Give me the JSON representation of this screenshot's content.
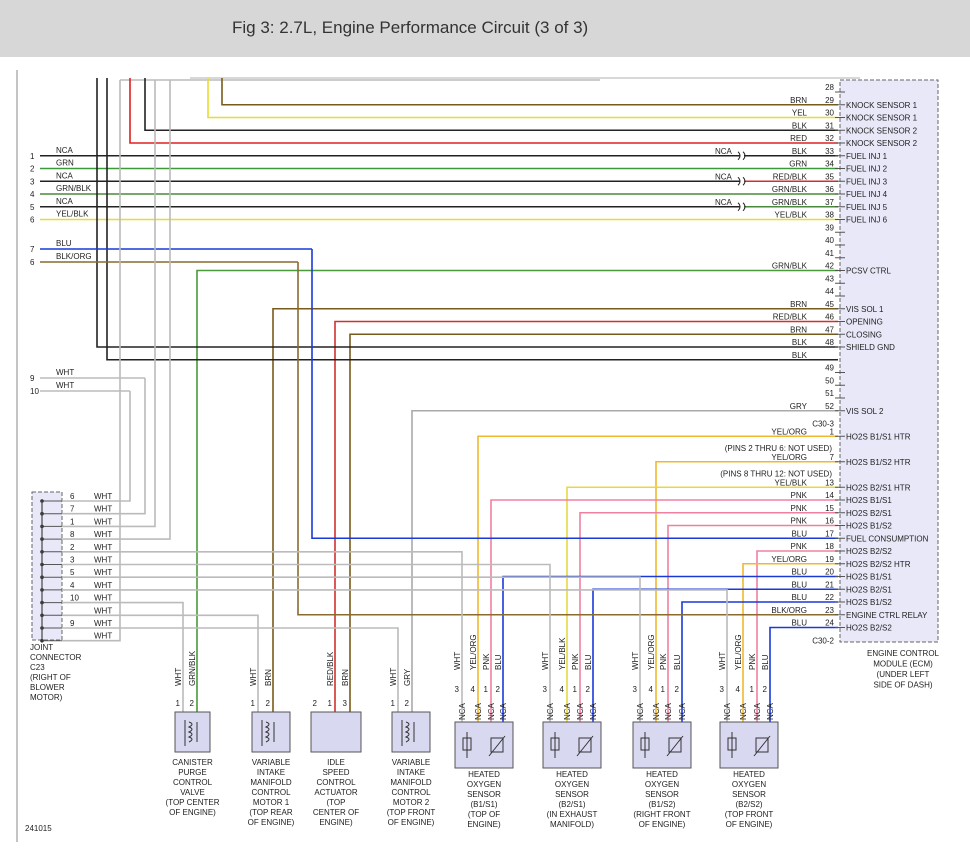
{
  "header": {
    "title": "Fig 3: 2.7L, Engine Performance Circuit (3 of 3)"
  },
  "ecm": {
    "label": [
      "ENGINE CONTROL",
      "MODULE (ECM)",
      "(UNDER LEFT",
      "SIDE OF DASH)"
    ],
    "rows": [
      {
        "pin": "28"
      },
      {
        "pin": "29",
        "wire": "BRN",
        "function": "KNOCK SENSOR 1"
      },
      {
        "pin": "30",
        "wire": "YEL",
        "function": "KNOCK SENSOR 1"
      },
      {
        "pin": "31",
        "wire": "BLK",
        "function": "KNOCK SENSOR 2"
      },
      {
        "pin": "32",
        "wire": "RED",
        "function": "KNOCK SENSOR 2"
      },
      {
        "pin": "33",
        "wire": "BLK",
        "function": "FUEL INJ 1",
        "splice": "NCA"
      },
      {
        "pin": "34",
        "wire": "GRN",
        "function": "FUEL INJ 2"
      },
      {
        "pin": "35",
        "wire": "RED/BLK",
        "function": "FUEL INJ 3",
        "splice": "NCA"
      },
      {
        "pin": "36",
        "wire": "GRN/BLK",
        "function": "FUEL INJ 4"
      },
      {
        "pin": "37",
        "wire": "GRN/BLK",
        "function": "FUEL INJ 5",
        "splice": "NCA"
      },
      {
        "pin": "38",
        "wire": "YEL/BLK",
        "function": "FUEL INJ 6"
      },
      {
        "pin": "39"
      },
      {
        "pin": "40"
      },
      {
        "pin": "41"
      },
      {
        "pin": "42",
        "wire": "GRN/BLK",
        "function": "PCSV CTRL"
      },
      {
        "pin": "43"
      },
      {
        "pin": "44"
      },
      {
        "pin": "45",
        "wire": "BRN",
        "function": "VIS SOL 1"
      },
      {
        "pin": "46",
        "wire": "RED/BLK",
        "function": "OPENING"
      },
      {
        "pin": "47",
        "wire": "BRN",
        "function": "CLOSING"
      },
      {
        "pin": "48",
        "wire": "BLK",
        "function": "SHIELD GND"
      },
      {
        "wire": "BLK"
      },
      {
        "pin": "49"
      },
      {
        "pin": "50"
      },
      {
        "pin": "51"
      },
      {
        "pin": "52",
        "wire": "GRY",
        "function": "VIS SOL 2"
      },
      {
        "connector": "C30-3"
      },
      {
        "pin": "1",
        "wire": "YEL/ORG",
        "function": "HO2S B1/S1 HTR"
      },
      {
        "note": "(PINS 2 THRU 6: NOT USED)"
      },
      {
        "pin": "7",
        "wire": "YEL/ORG",
        "function": "HO2S B1/S2 HTR"
      },
      {
        "note": "(PINS 8 THRU 12: NOT USED)"
      },
      {
        "pin": "13",
        "wire": "YEL/BLK",
        "function": "HO2S B2/S1 HTR"
      },
      {
        "pin": "14",
        "wire": "PNK",
        "function": "HO2S B1/S1"
      },
      {
        "pin": "15",
        "wire": "PNK",
        "function": "HO2S B2/S1"
      },
      {
        "pin": "16",
        "wire": "PNK",
        "function": "HO2S B1/S2"
      },
      {
        "pin": "17",
        "wire": "BLU",
        "function": "FUEL CONSUMPTION"
      },
      {
        "pin": "18",
        "wire": "PNK",
        "function": "HO2S B2/S2"
      },
      {
        "pin": "19",
        "wire": "YEL/ORG",
        "function": "HO2S B2/S2 HTR"
      },
      {
        "pin": "20",
        "wire": "BLU",
        "function": "HO2S B1/S1"
      },
      {
        "pin": "21",
        "wire": "BLU",
        "function": "HO2S B2/S1"
      },
      {
        "pin": "22",
        "wire": "BLU",
        "function": "HO2S B1/S2"
      },
      {
        "pin": "23",
        "wire": "BLK/ORG",
        "function": "ENGINE CTRL RELAY"
      },
      {
        "pin": "24",
        "wire": "BLU",
        "function": "HO2S B2/S2"
      },
      {
        "connector": "C30-2"
      }
    ]
  },
  "left_pins": [
    {
      "pin": "1",
      "wire": "NCA"
    },
    {
      "pin": "2",
      "wire": "GRN"
    },
    {
      "pin": "3",
      "wire": "NCA"
    },
    {
      "pin": "4",
      "wire": "GRN/BLK"
    },
    {
      "pin": "5",
      "wire": "NCA"
    },
    {
      "pin": "6",
      "wire": "YEL/BLK"
    },
    {
      "pin": "7",
      "wire": "BLU"
    },
    {
      "pin": "6",
      "wire": "BLK/ORG"
    },
    {
      "pin": "9",
      "wire": "WHT"
    },
    {
      "pin": "10",
      "wire": "WHT"
    }
  ],
  "joint_connector": {
    "label": [
      "JOINT",
      "CONNECTOR",
      "C23",
      "(RIGHT OF",
      "BLOWER",
      "MOTOR)"
    ],
    "rows": [
      {
        "pin": "6",
        "wire": "WHT"
      },
      {
        "pin": "7",
        "wire": "WHT"
      },
      {
        "pin": "1",
        "wire": "WHT"
      },
      {
        "pin": "8",
        "wire": "WHT"
      },
      {
        "pin": "2",
        "wire": "WHT"
      },
      {
        "pin": "3",
        "wire": "WHT"
      },
      {
        "pin": "5",
        "wire": "WHT"
      },
      {
        "pin": "4",
        "wire": "WHT"
      },
      {
        "pin": "10",
        "wire": "WHT"
      },
      {
        "wire": "WHT"
      },
      {
        "pin": "9",
        "wire": "WHT"
      },
      {
        "wire": "WHT"
      }
    ]
  },
  "components": [
    {
      "pins": [
        {
          "pin": "1",
          "wire": "WHT"
        },
        {
          "pin": "2",
          "wire": "GRN/BLK"
        }
      ],
      "label": [
        "CANISTER",
        "PURGE",
        "CONTROL",
        "VALVE",
        "(TOP CENTER",
        "OF ENGINE)"
      ]
    },
    {
      "pins": [
        {
          "pin": "1",
          "wire": "WHT"
        },
        {
          "pin": "2",
          "wire": "BRN"
        }
      ],
      "label": [
        "VARIABLE",
        "INTAKE",
        "MANIFOLD",
        "CONTROL",
        "MOTOR 1",
        "(TOP REAR",
        "OF ENGINE)"
      ]
    },
    {
      "pins": [
        {
          "pin": "2"
        },
        {
          "pin": "1",
          "wire": "RED/BLK"
        },
        {
          "pin": "3",
          "wire": "BRN"
        }
      ],
      "label": [
        "IDLE",
        "SPEED",
        "CONTROL",
        "ACTUATOR",
        "(TOP",
        "CENTER OF",
        "ENGINE)"
      ]
    },
    {
      "pins": [
        {
          "pin": "1",
          "wire": "WHT"
        },
        {
          "pin": "2",
          "wire": "GRY"
        }
      ],
      "label": [
        "VARIABLE",
        "INTAKE",
        "MANIFOLD",
        "CONTROL",
        "MOTOR 2",
        "(TOP FRONT",
        "OF ENGINE)"
      ]
    },
    {
      "pins": [
        {
          "pin": "3",
          "wire": "WHT",
          "terminal": "NCA"
        },
        {
          "pin": "4",
          "wire": "YEL/ORG",
          "terminal": "NCA"
        },
        {
          "pin": "1",
          "wire": "PNK",
          "terminal": "NCA"
        },
        {
          "pin": "2",
          "wire": "BLU",
          "terminal": "NCA"
        }
      ],
      "label": [
        "HEATED",
        "OXYGEN",
        "SENSOR",
        "(B1/S1)",
        "(TOP OF",
        "ENGINE)"
      ]
    },
    {
      "pins": [
        {
          "pin": "3",
          "wire": "WHT",
          "terminal": "NCA"
        },
        {
          "pin": "4",
          "wire": "YEL/BLK",
          "terminal": "NCA"
        },
        {
          "pin": "1",
          "wire": "PNK",
          "terminal": "NCA"
        },
        {
          "pin": "2",
          "wire": "BLU",
          "terminal": "NCA"
        }
      ],
      "label": [
        "HEATED",
        "OXYGEN",
        "SENSOR",
        "(B2/S1)",
        "(IN EXHAUST",
        "MANIFOLD)"
      ]
    },
    {
      "pins": [
        {
          "pin": "3",
          "wire": "WHT",
          "terminal": "NCA"
        },
        {
          "pin": "4",
          "wire": "YEL/ORG",
          "terminal": "NCA"
        },
        {
          "pin": "1",
          "wire": "PNK",
          "terminal": "NCA"
        },
        {
          "pin": "2",
          "wire": "BLU",
          "terminal": "NCA"
        }
      ],
      "label": [
        "HEATED",
        "OXYGEN",
        "SENSOR",
        "(B1/S2)",
        "(RIGHT FRONT",
        "OF ENGINE)"
      ]
    },
    {
      "pins": [
        {
          "pin": "3",
          "wire": "WHT",
          "terminal": "NCA"
        },
        {
          "pin": "4",
          "wire": "YEL/ORG",
          "terminal": "NCA"
        },
        {
          "pin": "1",
          "wire": "PNK",
          "terminal": "NCA"
        },
        {
          "pin": "2",
          "wire": "BLU",
          "terminal": "NCA"
        }
      ],
      "label": [
        "HEATED",
        "OXYGEN",
        "SENSOR",
        "(B2/S2)",
        "(TOP FRONT",
        "OF ENGINE)"
      ]
    }
  ],
  "footer": {
    "code": "241015"
  }
}
